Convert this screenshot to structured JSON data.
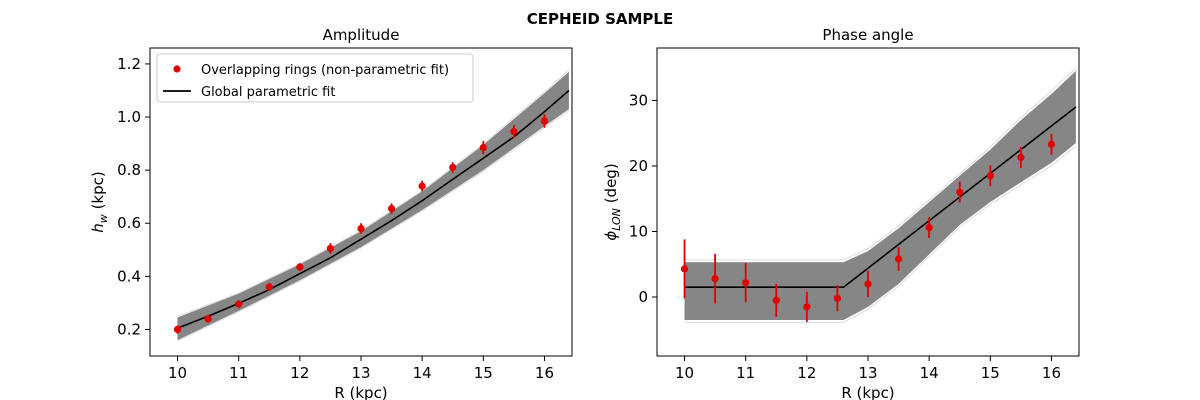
{
  "figure_title": "CEPHEID SAMPLE",
  "colors": {
    "points": "#e00000",
    "fit": "#000000",
    "band": "#808080",
    "draws": "#c8c8c8"
  },
  "chart_data": [
    {
      "type": "scatter",
      "title": "Amplitude",
      "xlabel": "R (kpc)",
      "ylabel_main": "h",
      "ylabel_sub": "w",
      "ylabel_tail": " (kpc)",
      "xlim": [
        9.55,
        16.45
      ],
      "ylim": [
        0.1,
        1.26
      ],
      "xticks": [
        10,
        11,
        12,
        13,
        14,
        15,
        16
      ],
      "yticks": [
        0.2,
        0.4,
        0.6,
        0.8,
        1.0,
        1.2
      ],
      "ytick_labels": [
        "0.2",
        "0.4",
        "0.6",
        "0.8",
        "1.0",
        "1.2"
      ],
      "legend": [
        {
          "label": "Overlapping rings (non-parametric fit)",
          "kind": "marker"
        },
        {
          "label": "Global parametric fit",
          "kind": "line"
        }
      ],
      "points": {
        "name": "Overlapping rings (non-parametric fit)",
        "x": [
          10,
          10.5,
          11,
          11.5,
          12,
          12.5,
          13,
          13.5,
          14,
          14.5,
          15,
          15.5,
          16
        ],
        "y": [
          0.2,
          0.24,
          0.295,
          0.36,
          0.435,
          0.505,
          0.58,
          0.655,
          0.74,
          0.81,
          0.885,
          0.945,
          0.985
        ],
        "err": [
          0.015,
          0.015,
          0.015,
          0.015,
          0.015,
          0.02,
          0.02,
          0.02,
          0.02,
          0.02,
          0.025,
          0.025,
          0.025
        ]
      },
      "fit_line": {
        "name": "Global parametric fit",
        "x": [
          10,
          10.5,
          11,
          11.5,
          12,
          12.5,
          13,
          13.5,
          14,
          14.5,
          15,
          15.5,
          16,
          16.4
        ],
        "y": [
          0.205,
          0.25,
          0.298,
          0.35,
          0.41,
          0.47,
          0.54,
          0.61,
          0.685,
          0.765,
          0.845,
          0.925,
          1.02,
          1.1
        ]
      },
      "band": {
        "x": [
          10,
          11,
          12,
          13,
          14,
          15,
          16,
          16.4
        ],
        "lower": [
          0.16,
          0.27,
          0.385,
          0.51,
          0.65,
          0.8,
          0.965,
          1.03
        ],
        "upper": [
          0.245,
          0.335,
          0.445,
          0.57,
          0.72,
          0.895,
          1.09,
          1.17
        ]
      }
    },
    {
      "type": "scatter",
      "title": "Phase angle",
      "xlabel": "R (kpc)",
      "ylabel_main": "ϕ",
      "ylabel_sub": "LON",
      "ylabel_tail": " (deg)",
      "xlim": [
        9.55,
        16.45
      ],
      "ylim": [
        -9,
        38
      ],
      "xticks": [
        10,
        11,
        12,
        13,
        14,
        15,
        16
      ],
      "yticks": [
        0,
        10,
        20,
        30
      ],
      "ytick_labels": [
        "0",
        "10",
        "20",
        "30"
      ],
      "points": {
        "name": "Overlapping rings (non-parametric fit)",
        "x": [
          10,
          10.5,
          11,
          11.5,
          12,
          12.5,
          13,
          13.5,
          14,
          14.5,
          15,
          15.5,
          16
        ],
        "y": [
          4.3,
          2.8,
          2.2,
          -0.5,
          -1.5,
          -0.2,
          2.0,
          5.8,
          10.6,
          16.0,
          18.5,
          21.3,
          23.3
        ],
        "err": [
          4.5,
          3.8,
          3.0,
          2.5,
          2.3,
          2.0,
          2.0,
          1.8,
          1.6,
          1.6,
          1.6,
          1.6,
          1.6
        ]
      },
      "fit_line": {
        "name": "Global parametric fit",
        "x": [
          10,
          12.6,
          16.4
        ],
        "y": [
          1.5,
          1.5,
          29.0
        ]
      },
      "band": {
        "x": [
          10,
          12.4,
          12.6,
          13,
          13.5,
          14,
          14.5,
          15,
          15.5,
          16,
          16.4
        ],
        "lower": [
          -3.5,
          -3.5,
          -3.5,
          -1.5,
          2.0,
          6.5,
          11.0,
          14.5,
          17.5,
          20.5,
          23.5
        ],
        "upper": [
          5.3,
          5.3,
          5.3,
          7.0,
          10.5,
          14.5,
          18.5,
          22.5,
          27.0,
          31.0,
          34.5
        ]
      }
    }
  ]
}
